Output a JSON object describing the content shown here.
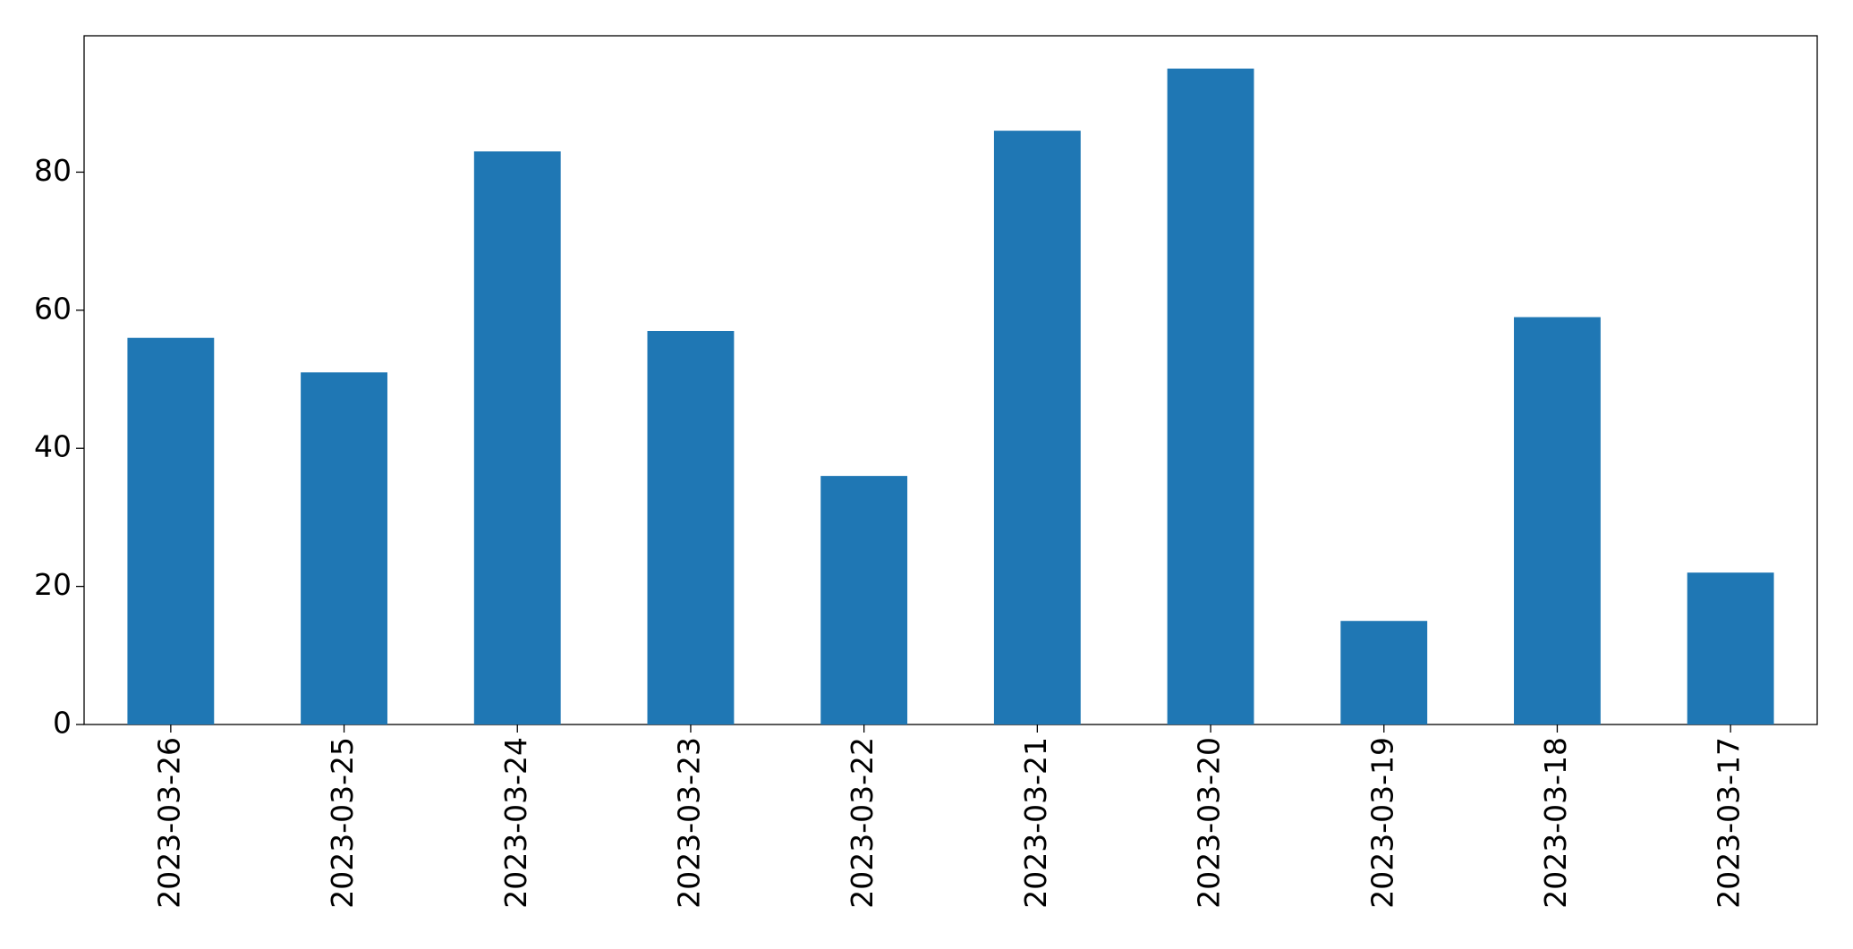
{
  "chart_data": {
    "type": "bar",
    "categories": [
      "2023-03-26",
      "2023-03-25",
      "2023-03-24",
      "2023-03-23",
      "2023-03-22",
      "2023-03-21",
      "2023-03-20",
      "2023-03-19",
      "2023-03-18",
      "2023-03-17"
    ],
    "values": [
      56,
      51,
      83,
      57,
      36,
      86,
      95,
      15,
      59,
      22
    ],
    "color": "#1f77b4",
    "ylim": [
      0,
      99.75
    ],
    "yticks": [
      0,
      20,
      40,
      60,
      80
    ],
    "grid": false
  }
}
